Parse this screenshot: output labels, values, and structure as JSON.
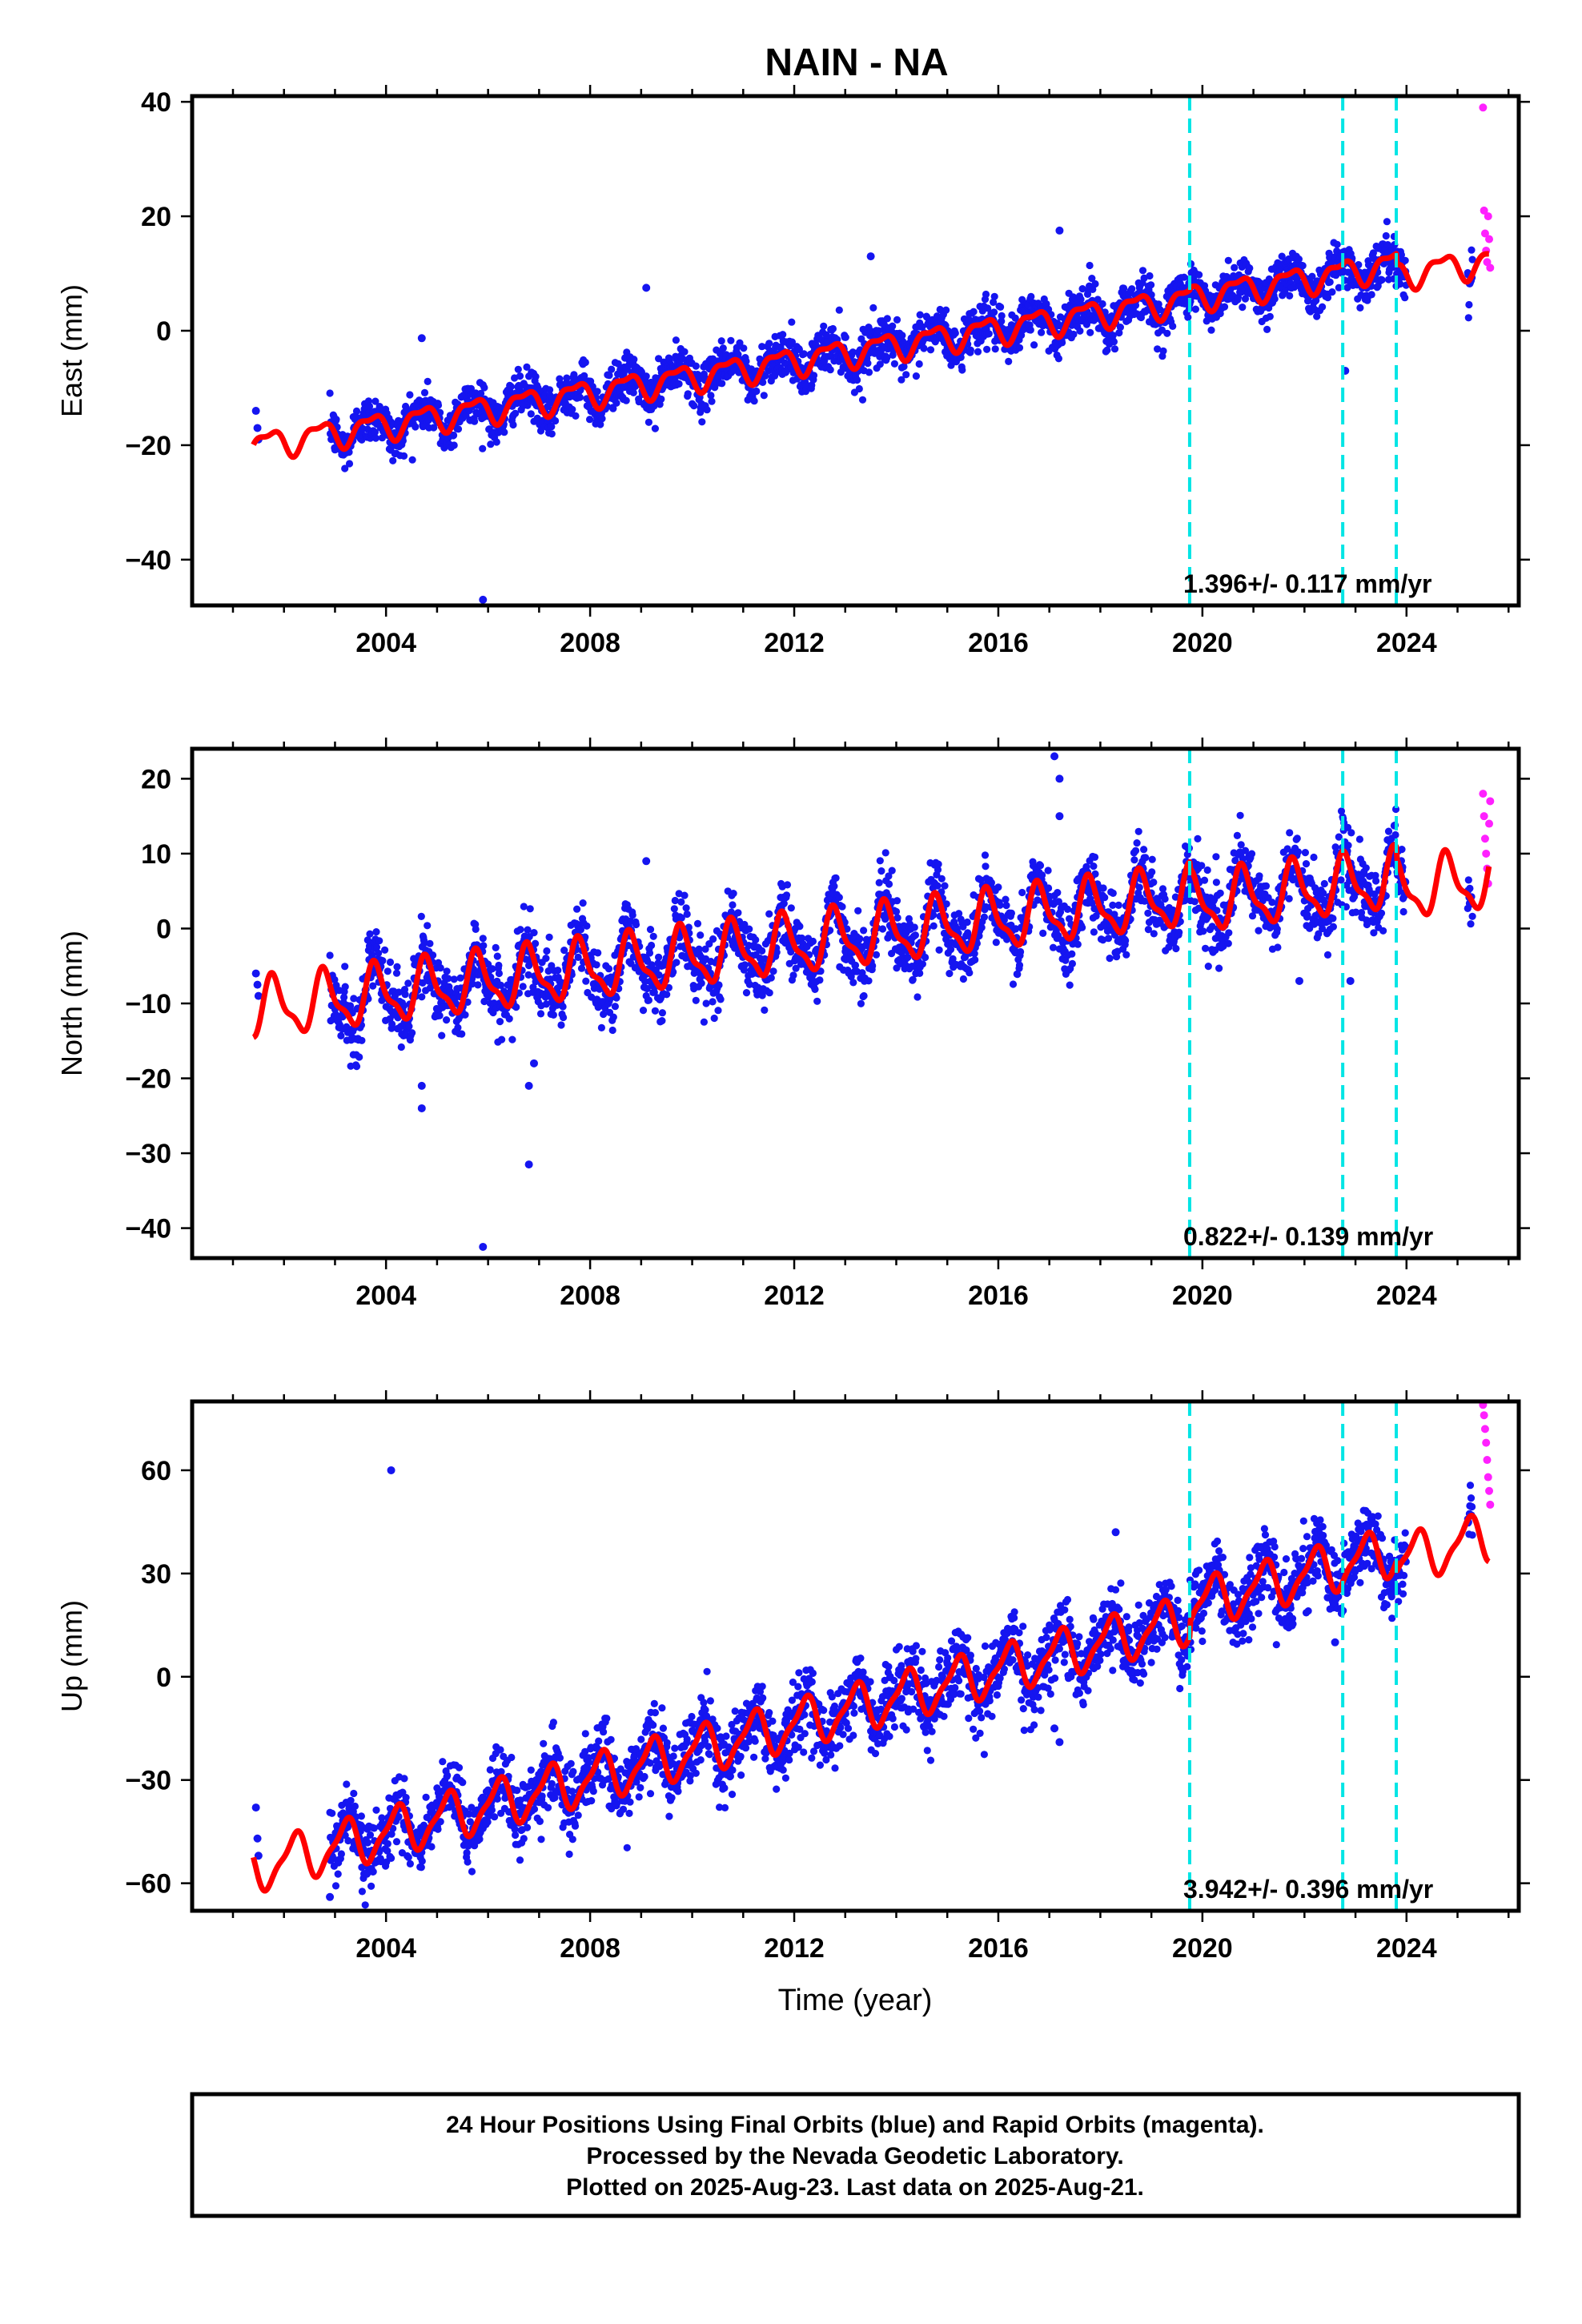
{
  "title": "NAIN - NA",
  "xlabel": "Time (year)",
  "footer_lines": [
    "24 Hour Positions Using Final Orbits (blue) and Rapid Orbits (magenta).",
    "Processed by the Nevada Geodetic Laboratory.",
    "Plotted on 2025-Aug-23. Last data on 2025-Aug-21."
  ],
  "colors": {
    "final_orbits": "#1515f0",
    "rapid_orbits": "#ff20ff",
    "model_fit": "#ff0000",
    "events": "#00e5e5",
    "frame": "#000000"
  },
  "chart_data": [
    {
      "type": "scatter",
      "panel": "east",
      "ylabel": "East (mm)",
      "xlim": [
        2000.2,
        2026.2
      ],
      "ylim": [
        -48,
        41
      ],
      "xticks": [
        2004,
        2008,
        2012,
        2016,
        2020,
        2024
      ],
      "yticks": [
        -40,
        -20,
        0,
        20,
        40
      ],
      "rate_label": "1.396+/- 0.117 mm/yr",
      "data_start": 2002.9,
      "data_end": 2025.3,
      "fit": {
        "start": 2001.4,
        "end": 2025.62,
        "intercept_at_2014": -2.5,
        "rate": 1.396,
        "annual_amp": 2.2,
        "annual_phase_year": 0.45,
        "semiannual_amp": 0.9,
        "semiannual_phase_year": 0.3,
        "offsets": [
          {
            "year": 2019.75,
            "offset": 0.3
          },
          {
            "year": 2022.75,
            "offset": 0.2
          },
          {
            "year": 2023.8,
            "offset": -2.0
          }
        ]
      },
      "scatter_sigma": 2.0,
      "gaps": [
        [
          2024.0,
          2025.2
        ]
      ],
      "events": [
        2019.75,
        2022.75,
        2023.8
      ],
      "outliers": [
        {
          "x": 2005.9,
          "y": -47
        },
        {
          "x": 2004.7,
          "y": -1.3
        },
        {
          "x": 2009.1,
          "y": 7.5
        },
        {
          "x": 2013.5,
          "y": 13
        },
        {
          "x": 2017.2,
          "y": 17.5
        },
        {
          "x": 2022.8,
          "y": -7
        }
      ],
      "early_points": [
        {
          "x": 2001.45,
          "y": -14
        },
        {
          "x": 2001.48,
          "y": -17
        },
        {
          "x": 2001.5,
          "y": -19
        }
      ],
      "rapid_points": [
        {
          "x": 2025.5,
          "y": 39
        },
        {
          "x": 2025.52,
          "y": 21
        },
        {
          "x": 2025.54,
          "y": 17
        },
        {
          "x": 2025.56,
          "y": 14
        },
        {
          "x": 2025.58,
          "y": 12
        },
        {
          "x": 2025.6,
          "y": 20
        },
        {
          "x": 2025.62,
          "y": 16
        },
        {
          "x": 2025.64,
          "y": 11
        }
      ]
    },
    {
      "type": "scatter",
      "panel": "north",
      "ylabel": "North (mm)",
      "xlim": [
        2000.2,
        2026.2
      ],
      "ylim": [
        -44,
        24
      ],
      "xticks": [
        2004,
        2008,
        2012,
        2016,
        2020,
        2024
      ],
      "yticks": [
        -40,
        -30,
        -20,
        -10,
        0,
        10,
        20
      ],
      "rate_label": "0.822+/- 0.139 mm/yr",
      "data_start": 2002.9,
      "data_end": 2025.3,
      "fit": {
        "start": 2001.4,
        "end": 2025.62,
        "intercept_at_2014": -0.5,
        "rate": 0.822,
        "annual_amp": 3.6,
        "annual_phase_year": 0.55,
        "semiannual_amp": 1.3,
        "semiannual_phase_year": 0.6,
        "offsets": [
          {
            "year": 2019.75,
            "offset": -1.0
          },
          {
            "year": 2022.75,
            "offset": 0.0
          },
          {
            "year": 2023.8,
            "offset": -1.5
          }
        ]
      },
      "scatter_sigma": 2.3,
      "gaps": [
        [
          2024.0,
          2025.2
        ]
      ],
      "events": [
        2019.75,
        2022.75,
        2023.8
      ],
      "outliers": [
        {
          "x": 2005.9,
          "y": -42.5
        },
        {
          "x": 2006.8,
          "y": -31.5
        },
        {
          "x": 2004.7,
          "y": -24
        },
        {
          "x": 2004.7,
          "y": -21
        },
        {
          "x": 2006.8,
          "y": -21
        },
        {
          "x": 2006.9,
          "y": -18
        },
        {
          "x": 2017.1,
          "y": 23
        },
        {
          "x": 2017.2,
          "y": 20
        },
        {
          "x": 2017.2,
          "y": 15
        },
        {
          "x": 2021.9,
          "y": -7
        },
        {
          "x": 2022.9,
          "y": -7
        },
        {
          "x": 2009.1,
          "y": 9
        }
      ],
      "early_points": [
        {
          "x": 2001.45,
          "y": -6
        },
        {
          "x": 2001.48,
          "y": -7.5
        },
        {
          "x": 2001.5,
          "y": -9
        }
      ],
      "rapid_points": [
        {
          "x": 2025.5,
          "y": 18
        },
        {
          "x": 2025.52,
          "y": 15
        },
        {
          "x": 2025.54,
          "y": 12
        },
        {
          "x": 2025.56,
          "y": 10
        },
        {
          "x": 2025.58,
          "y": 8
        },
        {
          "x": 2025.6,
          "y": 6
        },
        {
          "x": 2025.62,
          "y": 14
        },
        {
          "x": 2025.64,
          "y": 17
        }
      ]
    },
    {
      "type": "scatter",
      "panel": "up",
      "ylabel": "Up (mm)",
      "xlim": [
        2000.2,
        2026.2
      ],
      "ylim": [
        -68,
        80
      ],
      "xticks": [
        2004,
        2008,
        2012,
        2016,
        2020,
        2024
      ],
      "yticks": [
        -60,
        -30,
        0,
        30,
        60
      ],
      "rate_label": "3.942+/- 0.396 mm/yr",
      "data_start": 2002.9,
      "data_end": 2025.3,
      "fit": {
        "start": 2001.4,
        "end": 2025.62,
        "intercept_at_2014": -6,
        "rate": 3.942,
        "annual_amp": 6.5,
        "annual_phase_year": 0.95,
        "semiannual_amp": 2.0,
        "semiannual_phase_year": 0.2,
        "offsets": [
          {
            "year": 2019.75,
            "offset": 4.0
          },
          {
            "year": 2022.75,
            "offset": 0.0
          },
          {
            "year": 2023.8,
            "offset": -3.0
          }
        ]
      },
      "scatter_sigma": 5.0,
      "gaps": [
        [
          2024.0,
          2025.2
        ]
      ],
      "events": [
        2019.75,
        2022.75,
        2023.8
      ],
      "outliers": [
        {
          "x": 2004.1,
          "y": 60
        },
        {
          "x": 2017.2,
          "y": -19
        },
        {
          "x": 2017.1,
          "y": -15
        },
        {
          "x": 2018.3,
          "y": 42
        },
        {
          "x": 2022.6,
          "y": 10
        },
        {
          "x": 2002.9,
          "y": -64
        }
      ],
      "early_points": [
        {
          "x": 2001.45,
          "y": -38
        },
        {
          "x": 2001.48,
          "y": -47
        },
        {
          "x": 2001.5,
          "y": -52
        }
      ],
      "rapid_points": [
        {
          "x": 2025.5,
          "y": 79
        },
        {
          "x": 2025.52,
          "y": 76
        },
        {
          "x": 2025.54,
          "y": 72
        },
        {
          "x": 2025.56,
          "y": 68
        },
        {
          "x": 2025.58,
          "y": 63
        },
        {
          "x": 2025.6,
          "y": 58
        },
        {
          "x": 2025.62,
          "y": 54
        },
        {
          "x": 2025.64,
          "y": 50
        }
      ]
    }
  ]
}
